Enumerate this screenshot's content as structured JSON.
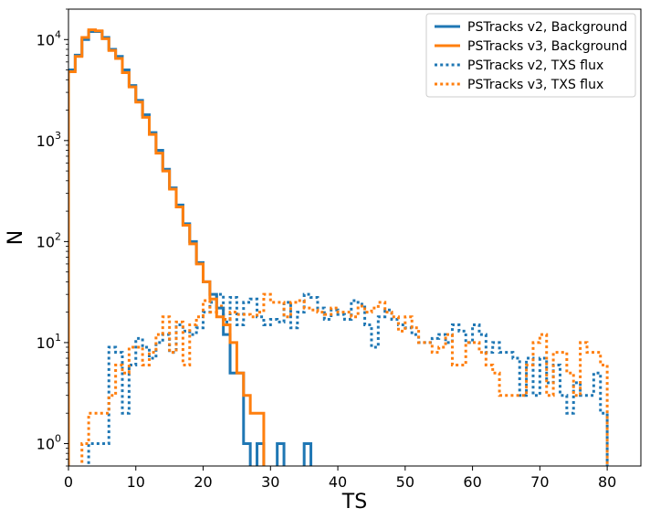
{
  "chart_data": {
    "type": "line",
    "xlabel": "TS",
    "ylabel": "N",
    "xlim": [
      0,
      85
    ],
    "ylim": [
      0.6,
      20000
    ],
    "yscale": "log",
    "x_ticks": [
      0,
      10,
      20,
      30,
      40,
      50,
      60,
      70,
      80
    ],
    "y_ticks": [
      {
        "value": 1,
        "mant": "10",
        "exp": "0"
      },
      {
        "value": 10,
        "mant": "10",
        "exp": "1"
      },
      {
        "value": 100,
        "mant": "10",
        "exp": "2"
      },
      {
        "value": 1000,
        "mant": "10",
        "exp": "3"
      },
      {
        "value": 10000,
        "mant": "10",
        "exp": "4"
      }
    ],
    "grid": false,
    "legend_position": "top-right",
    "series": [
      {
        "name": "PSTracks v2, Background",
        "color": "#1f77b4",
        "style": "solid",
        "bins": [
          0,
          1,
          2,
          3,
          4,
          5,
          6,
          7,
          8,
          9,
          10,
          11,
          12,
          13,
          14,
          15,
          16,
          17,
          18,
          19,
          20,
          21,
          22,
          23,
          24,
          25,
          26,
          27,
          28,
          29,
          30,
          31,
          32,
          33,
          34,
          35,
          36,
          37
        ],
        "counts": [
          5000,
          7000,
          10000,
          12000,
          12000,
          10500,
          8000,
          6800,
          5000,
          3500,
          2500,
          1800,
          1200,
          800,
          520,
          340,
          230,
          150,
          100,
          62,
          40,
          30,
          22,
          12,
          5,
          5,
          1,
          0,
          1,
          0,
          0,
          1,
          0,
          0,
          0,
          1,
          0,
          0
        ]
      },
      {
        "name": "PSTracks v3, Background",
        "color": "#ff7f0e",
        "style": "solid",
        "bins": [
          0,
          1,
          2,
          3,
          4,
          5,
          6,
          7,
          8,
          9,
          10,
          11,
          12,
          13,
          14,
          15,
          16,
          17,
          18,
          19,
          20,
          21,
          22,
          23,
          24,
          25,
          26,
          27,
          28,
          29,
          30,
          31
        ],
        "counts": [
          4800,
          6800,
          10500,
          12500,
          12200,
          10200,
          7800,
          6500,
          4700,
          3400,
          2400,
          1700,
          1150,
          750,
          500,
          330,
          220,
          145,
          95,
          60,
          40,
          27,
          18,
          15,
          10,
          5,
          3,
          2,
          2,
          0,
          0,
          0
        ]
      },
      {
        "name": "PSTracks v2, TXS flux",
        "color": "#1f77b4",
        "style": "dotted",
        "bins": [
          0,
          1,
          2,
          3,
          4,
          5,
          6,
          7,
          8,
          9,
          10,
          11,
          12,
          13,
          14,
          15,
          16,
          17,
          18,
          19,
          20,
          21,
          22,
          23,
          24,
          25,
          26,
          27,
          28,
          29,
          30,
          31,
          32,
          33,
          34,
          35,
          36,
          37,
          38,
          39,
          40,
          41,
          42,
          43,
          44,
          45,
          46,
          47,
          48,
          49,
          50,
          51,
          52,
          53,
          54,
          55,
          56,
          57,
          58,
          59,
          60,
          61,
          62,
          63,
          64,
          65,
          66,
          67,
          68,
          69,
          70,
          71,
          72,
          73,
          74,
          75,
          76,
          77,
          78,
          79,
          80,
          81
        ],
        "counts": [
          0,
          0,
          0,
          1,
          1,
          1,
          9,
          8,
          2,
          6,
          11,
          9,
          7,
          10,
          12,
          8,
          15,
          13,
          12,
          14,
          20,
          25,
          30,
          16,
          28,
          15,
          25,
          27,
          18,
          15,
          17,
          16,
          25,
          14,
          20,
          30,
          28,
          22,
          17,
          21,
          19,
          17,
          26,
          24,
          15,
          9,
          18,
          21,
          17,
          15,
          14,
          12,
          10,
          10,
          11,
          12,
          10,
          15,
          13,
          10,
          15,
          12,
          8,
          10,
          8,
          8,
          7,
          3,
          7,
          3,
          7,
          4,
          6,
          3,
          2,
          4,
          3,
          3,
          5,
          2,
          0,
          0
        ],
        "note": "approximate"
      },
      {
        "name": "PSTracks v3, TXS flux",
        "color": "#ff7f0e",
        "style": "dotted",
        "bins": [
          0,
          1,
          2,
          3,
          4,
          5,
          6,
          7,
          8,
          9,
          10,
          11,
          12,
          13,
          14,
          15,
          16,
          17,
          18,
          19,
          20,
          21,
          22,
          23,
          24,
          25,
          26,
          27,
          28,
          29,
          30,
          31,
          32,
          33,
          34,
          35,
          36,
          37,
          38,
          39,
          40,
          41,
          42,
          43,
          44,
          45,
          46,
          47,
          48,
          49,
          50,
          51,
          52,
          53,
          54,
          55,
          56,
          57,
          58,
          59,
          60,
          61,
          62,
          63,
          64,
          65,
          66,
          67,
          68,
          69,
          70,
          71,
          72,
          73,
          74,
          75,
          76,
          77,
          78,
          79,
          80,
          81
        ],
        "counts": [
          0,
          0,
          1,
          2,
          2,
          2,
          3,
          6,
          5,
          9,
          9,
          6,
          8,
          12,
          18,
          8,
          16,
          6,
          15,
          18,
          26,
          20,
          23,
          17,
          20,
          19,
          19,
          18,
          20,
          30,
          25,
          25,
          18,
          25,
          26,
          22,
          21,
          20,
          19,
          22,
          20,
          20,
          18,
          23,
          20,
          22,
          25,
          20,
          18,
          13,
          18,
          14,
          10,
          10,
          8,
          9,
          12,
          6,
          6,
          10,
          10,
          8,
          6,
          5,
          3,
          3,
          3,
          3,
          6,
          10,
          12,
          3,
          8,
          8,
          5,
          3,
          10,
          8,
          8,
          6,
          0,
          0
        ]
      }
    ]
  }
}
